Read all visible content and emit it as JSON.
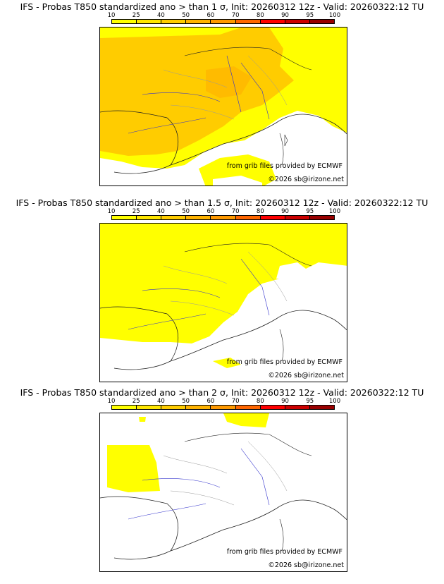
{
  "panels": [
    {
      "title": "IFS - Probas T850  standardized ano > than 1 σ, Init: 20260312 12z - Valid: 20260322:12 TU",
      "sigma": "1 σ"
    },
    {
      "title": "IFS - Probas T850  standardized ano > than 1.5 σ, Init: 20260312 12z - Valid: 20260322:12 TU",
      "sigma": "1.5 σ"
    },
    {
      "title": "IFS - Probas T850  standardized ano > than 2 σ, Init: 20260312 12z - Valid: 20260322:12 TU",
      "sigma": "2 σ"
    }
  ],
  "scale": {
    "ticks": [
      "10",
      "25",
      "40",
      "50",
      "60",
      "70",
      "80",
      "90",
      "95",
      "100"
    ],
    "colors": [
      "#ffff00",
      "#ffe600",
      "#ffcc00",
      "#ffb300",
      "#ff9900",
      "#ff6600",
      "#ff0000",
      "#cc0000",
      "#990000"
    ]
  },
  "credits": {
    "source": "from grib files provided by ECMWF",
    "copyright": "©2026 sb@irizone.net"
  }
}
